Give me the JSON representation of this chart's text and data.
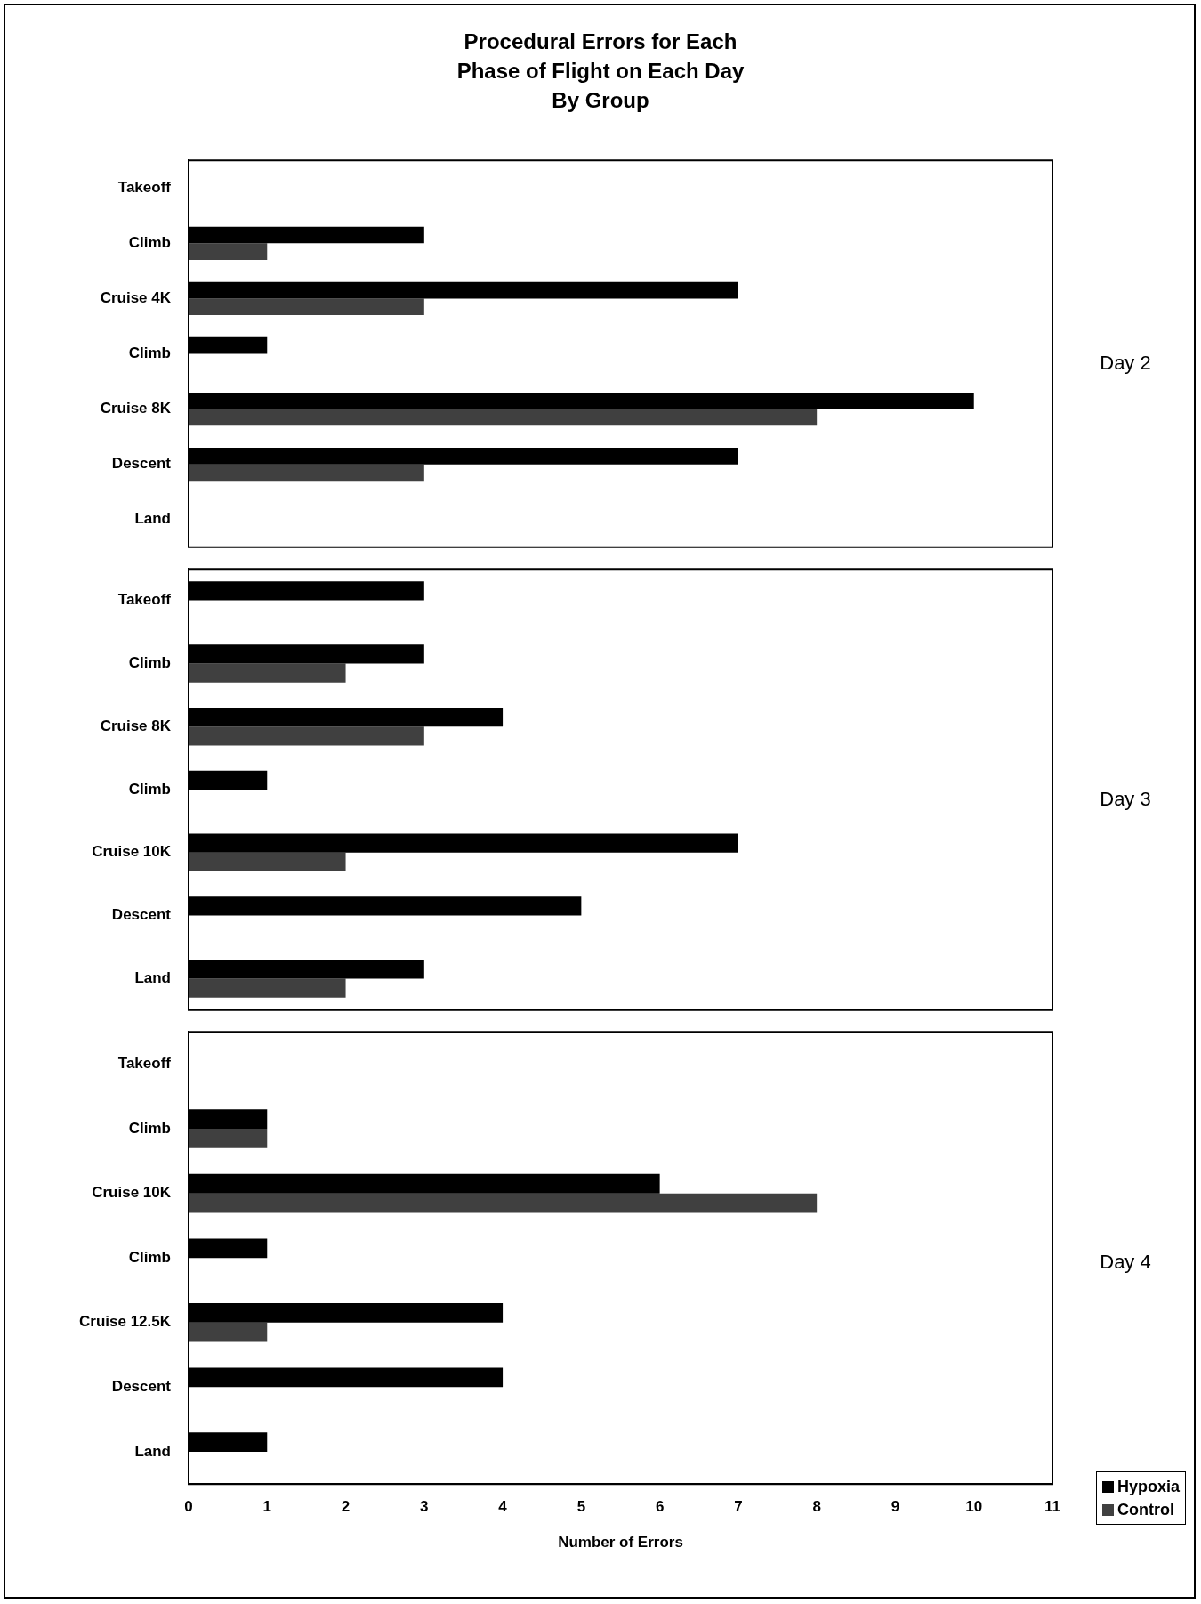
{
  "chart_data": [
    {
      "type": "bar",
      "orientation": "horizontal",
      "title": "Procedural Errors for Each\nPhase of Flight on Each Day\nBy Group",
      "y2label": "Day 2",
      "categories": [
        "Takeoff",
        "Climb",
        "Cruise 4K",
        "Climb",
        "Cruise 8K",
        "Descent",
        "Land"
      ],
      "xlim": [
        0,
        11
      ],
      "xticks": [
        0,
        1,
        2,
        3,
        4,
        5,
        6,
        7,
        8,
        9,
        10,
        11
      ],
      "tick_labels": "y",
      "series": [
        {
          "color": "#000000",
          "values": [
            0,
            3,
            7,
            1,
            10,
            7,
            0
          ]
        },
        {
          "color": "#404040",
          "values": [
            0,
            1,
            3,
            0,
            8,
            3,
            0
          ]
        }
      ]
    },
    {
      "type": "bar",
      "orientation": "horizontal",
      "y2label": "Day 3",
      "categories": [
        "Takeoff",
        "Climb",
        "Cruise 8K",
        "Climb",
        "Cruise 10K",
        "Descent",
        "Land"
      ],
      "xlim": [
        0,
        11
      ],
      "xticks": [
        0,
        1,
        2,
        3,
        4,
        5,
        6,
        7,
        8,
        9,
        10,
        11
      ],
      "tick_labels": "y",
      "series": [
        {
          "color": "#000000",
          "values": [
            3,
            3,
            4,
            1,
            7,
            5,
            3
          ]
        },
        {
          "color": "#404040",
          "values": [
            0,
            2,
            3,
            0,
            2,
            0,
            2
          ]
        }
      ]
    },
    {
      "type": "bar",
      "orientation": "horizontal",
      "y2label": "Day 4",
      "xlabel": "Number of Errors",
      "legend": "bottom right",
      "categories": [
        "Takeoff",
        "Climb",
        "Cruise 10K",
        "Climb",
        "Cruise 12.5K",
        "Descent",
        "Land"
      ],
      "xlim": [
        0,
        11
      ],
      "xticks": [
        0,
        1,
        2,
        3,
        4,
        5,
        6,
        7,
        8,
        9,
        10,
        11
      ],
      "series": [
        {
          "name": "Hypoxia",
          "color": "#000000",
          "values": [
            0,
            1,
            6,
            1,
            4,
            4,
            1
          ]
        },
        {
          "name": "Control",
          "color": "#404040",
          "values": [
            0,
            1,
            8,
            0,
            1,
            0,
            0
          ]
        }
      ]
    }
  ]
}
